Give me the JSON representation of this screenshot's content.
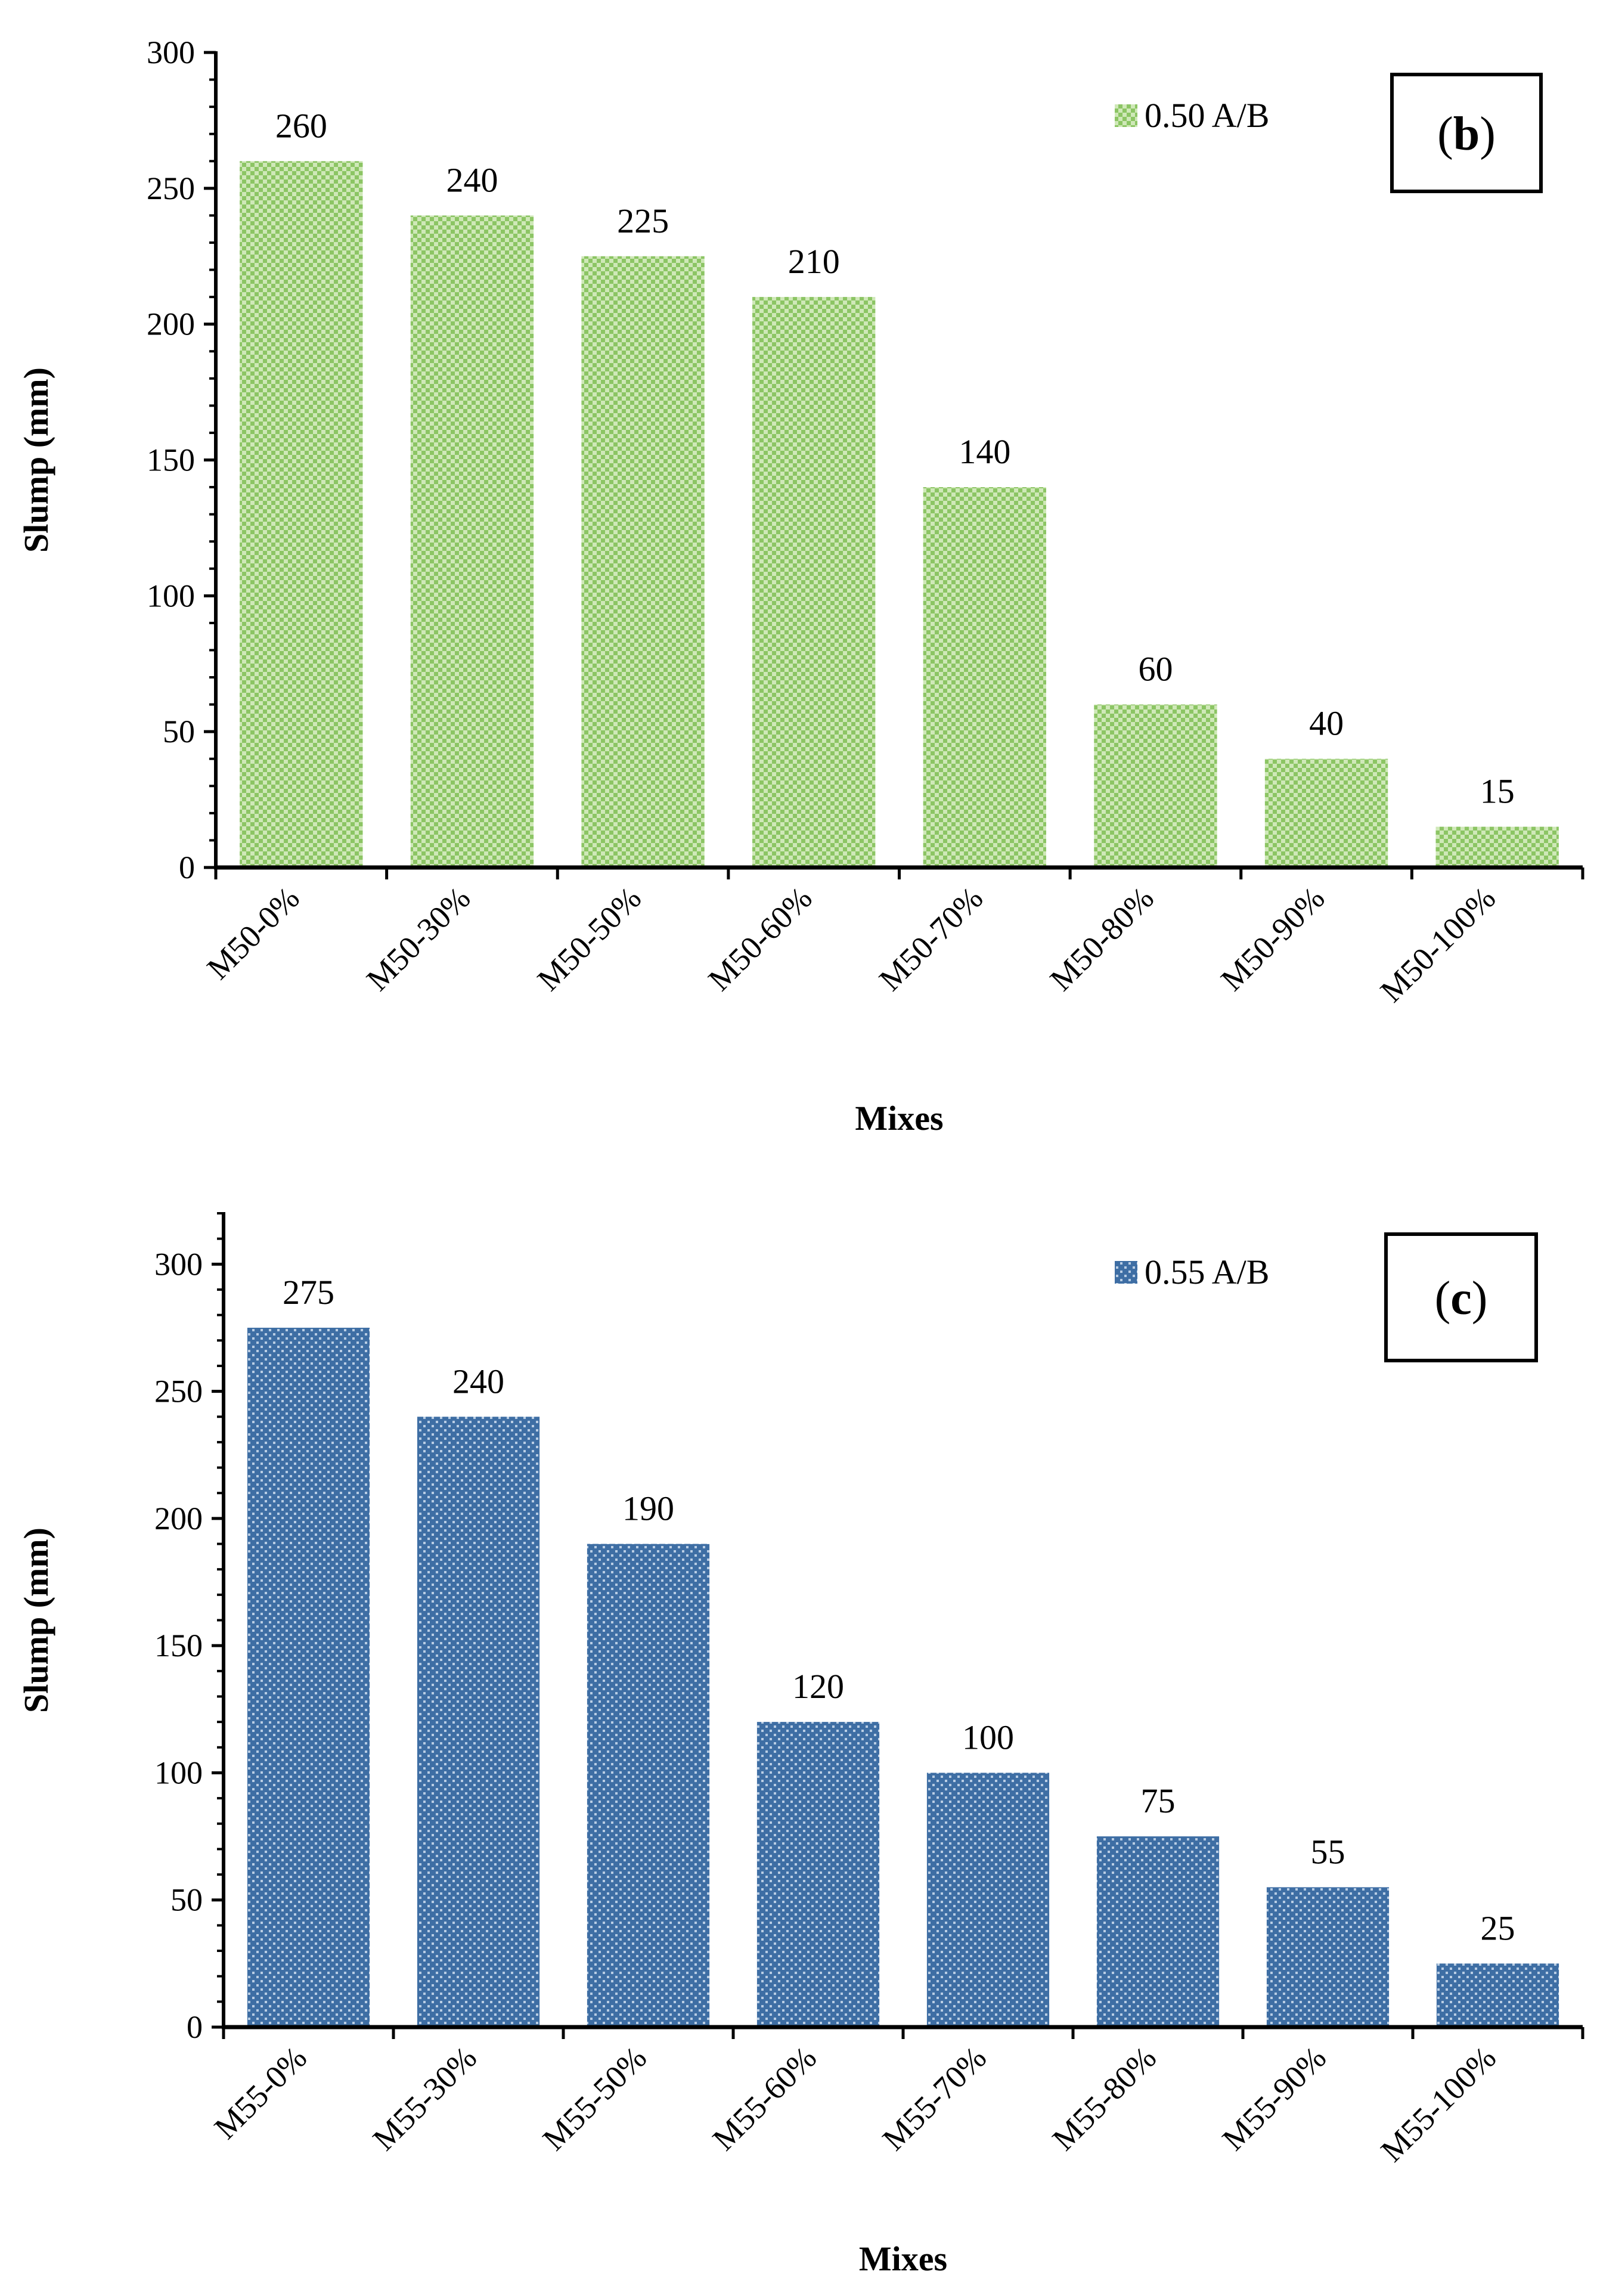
{
  "chart_data": [
    {
      "type": "bar",
      "panel_label": "(b)",
      "panel_letter": "b",
      "categories": [
        "M50-0%",
        "M50-30%",
        "M50-50%",
        "M50-60%",
        "M50-70%",
        "M50-80%",
        "M50-90%",
        "M50-100%"
      ],
      "series": [
        {
          "name": "0.50 A/B",
          "values": [
            260,
            240,
            225,
            210,
            140,
            60,
            40,
            15
          ],
          "color": "#8cc564"
        }
      ],
      "data_labels": [
        "260",
        "240",
        "225",
        "210",
        "140",
        "60",
        "40",
        "15"
      ],
      "xlabel": "Mixes",
      "ylabel": "Slump (mm)",
      "ylim": [
        0,
        300
      ],
      "yticks": [
        0,
        50,
        100,
        150,
        200,
        250,
        300
      ],
      "legend": "top-right",
      "grid": false
    },
    {
      "type": "bar",
      "panel_label": "(c)",
      "panel_letter": "c",
      "categories": [
        "M55-0%",
        "M55-30%",
        "M55-50%",
        "M55-60%",
        "M55-70%",
        "M55-80%",
        "M55-90%",
        "M55-100%"
      ],
      "series": [
        {
          "name": "0.55 A/B",
          "values": [
            275,
            240,
            190,
            120,
            100,
            75,
            55,
            25
          ],
          "color": "#3e6ea4"
        }
      ],
      "data_labels": [
        "275",
        "240",
        "190",
        "120",
        "100",
        "75",
        "55",
        "25"
      ],
      "xlabel": "Mixes",
      "ylabel": "Slump (mm)",
      "ylim": [
        0,
        320
      ],
      "yticks": [
        0,
        50,
        100,
        150,
        200,
        250,
        300
      ],
      "legend": "top-right",
      "grid": false
    }
  ]
}
